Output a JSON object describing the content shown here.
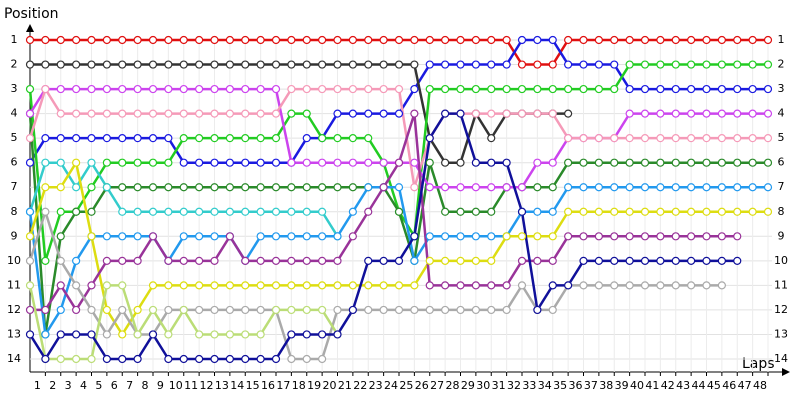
{
  "chart_data": {
    "type": "line",
    "x_label": "Laps",
    "y_label": "Position",
    "x": [
      0,
      1,
      2,
      3,
      4,
      5,
      6,
      7,
      8,
      9,
      10,
      11,
      12,
      13,
      14,
      15,
      16,
      17,
      18,
      19,
      20,
      21,
      22,
      23,
      24,
      25,
      26,
      27,
      28,
      29,
      30,
      31,
      32,
      33,
      34,
      35,
      36,
      37,
      38,
      39,
      40,
      41,
      42,
      43,
      44,
      45,
      46,
      47,
      48
    ],
    "xlim": [
      0,
      48
    ],
    "xticks": [
      1,
      2,
      3,
      4,
      5,
      6,
      7,
      8,
      9,
      10,
      11,
      12,
      13,
      14,
      15,
      16,
      17,
      18,
      19,
      20,
      21,
      22,
      23,
      24,
      25,
      26,
      27,
      28,
      29,
      30,
      31,
      32,
      33,
      34,
      35,
      36,
      37,
      38,
      39,
      40,
      41,
      42,
      43,
      44,
      45,
      46,
      47,
      48
    ],
    "ylim": [
      14,
      1
    ],
    "yticks": [
      1,
      2,
      3,
      4,
      5,
      6,
      7,
      8,
      9,
      10,
      11,
      12,
      13,
      14
    ],
    "grid": true,
    "series": [
      {
        "color": "#e01010",
        "values": [
          1,
          1,
          1,
          1,
          1,
          1,
          1,
          1,
          1,
          1,
          1,
          1,
          1,
          1,
          1,
          1,
          1,
          1,
          1,
          1,
          1,
          1,
          1,
          1,
          1,
          1,
          1,
          1,
          1,
          1,
          1,
          1,
          2,
          2,
          2,
          1,
          1,
          1,
          1,
          1,
          1,
          1,
          1,
          1,
          1,
          1,
          1,
          1,
          1
        ]
      },
      {
        "color": "#1a1ae0",
        "values": [
          6,
          5,
          5,
          5,
          5,
          5,
          5,
          5,
          5,
          5,
          6,
          6,
          6,
          6,
          6,
          6,
          6,
          6,
          5,
          5,
          4,
          4,
          4,
          4,
          4,
          3,
          2,
          2,
          2,
          2,
          2,
          2,
          1,
          1,
          1,
          2,
          2,
          2,
          2,
          3,
          3,
          3,
          3,
          3,
          3,
          3,
          3,
          3,
          3
        ]
      },
      {
        "color": "#333333",
        "values": [
          2,
          2,
          2,
          2,
          2,
          2,
          2,
          2,
          2,
          2,
          2,
          2,
          2,
          2,
          2,
          2,
          2,
          2,
          2,
          2,
          2,
          2,
          2,
          2,
          2,
          2,
          5,
          6,
          6,
          4,
          5,
          4,
          4,
          4,
          4,
          4,
          null,
          null,
          null,
          null,
          null,
          null,
          null,
          null,
          null,
          null,
          null,
          null,
          null
        ]
      },
      {
        "color": "#22cc22",
        "values": [
          3,
          10,
          8,
          8,
          7,
          6,
          6,
          6,
          6,
          6,
          5,
          5,
          5,
          5,
          5,
          5,
          5,
          4,
          4,
          5,
          5,
          5,
          5,
          6,
          8,
          9,
          3,
          3,
          3,
          3,
          3,
          3,
          3,
          3,
          3,
          3,
          3,
          3,
          3,
          2,
          2,
          2,
          2,
          2,
          2,
          2,
          2,
          2,
          2
        ]
      },
      {
        "color": "#2a8a2a",
        "values": [
          4,
          13,
          9,
          8,
          8,
          7,
          7,
          7,
          7,
          7,
          7,
          7,
          7,
          7,
          7,
          7,
          7,
          7,
          7,
          7,
          7,
          7,
          7,
          7,
          8,
          10,
          6,
          8,
          8,
          8,
          8,
          7,
          7,
          7,
          7,
          6,
          6,
          6,
          6,
          6,
          6,
          6,
          6,
          6,
          6,
          6,
          6,
          6,
          6
        ]
      },
      {
        "color": "#cc44ee",
        "values": [
          4,
          3,
          3,
          3,
          3,
          3,
          3,
          3,
          3,
          3,
          3,
          3,
          3,
          3,
          3,
          3,
          3,
          6,
          6,
          6,
          6,
          6,
          6,
          6,
          6,
          6,
          7,
          7,
          7,
          7,
          7,
          7,
          7,
          6,
          6,
          5,
          5,
          5,
          5,
          4,
          4,
          4,
          4,
          4,
          4,
          4,
          4,
          4,
          4
        ]
      },
      {
        "color": "#f59ab8",
        "values": [
          5,
          3,
          4,
          4,
          4,
          4,
          4,
          4,
          4,
          4,
          4,
          4,
          4,
          4,
          4,
          4,
          4,
          3,
          3,
          3,
          3,
          3,
          3,
          3,
          3,
          7,
          5,
          4,
          4,
          4,
          4,
          4,
          4,
          4,
          4,
          5,
          5,
          5,
          5,
          5,
          5,
          5,
          5,
          5,
          5,
          5,
          5,
          5,
          5
        ]
      },
      {
        "color": "#33cccc",
        "values": [
          8,
          6,
          6,
          7,
          6,
          7,
          8,
          8,
          8,
          8,
          8,
          8,
          8,
          8,
          8,
          8,
          8,
          8,
          8,
          8,
          9,
          null,
          null,
          null,
          null,
          null,
          null,
          null,
          null,
          null,
          null,
          null,
          null,
          null,
          null,
          null,
          null,
          null,
          null,
          null,
          null,
          null,
          null,
          null,
          null,
          null,
          null,
          null,
          null
        ]
      },
      {
        "color": "#2299ee",
        "values": [
          8,
          13,
          12,
          10,
          9,
          9,
          9,
          9,
          9,
          10,
          9,
          9,
          9,
          9,
          10,
          9,
          9,
          9,
          9,
          9,
          9,
          8,
          7,
          7,
          7,
          10,
          9,
          9,
          9,
          9,
          9,
          9,
          8,
          8,
          8,
          7,
          7,
          7,
          7,
          7,
          7,
          7,
          7,
          7,
          7,
          7,
          7,
          7,
          7
        ]
      },
      {
        "color": "#dddd11",
        "values": [
          9,
          7,
          7,
          6,
          9,
          12,
          13,
          12,
          11,
          11,
          11,
          11,
          11,
          11,
          11,
          11,
          11,
          11,
          11,
          11,
          11,
          11,
          11,
          11,
          11,
          11,
          10,
          10,
          10,
          10,
          10,
          9,
          9,
          9,
          9,
          8,
          8,
          8,
          8,
          8,
          8,
          8,
          8,
          8,
          8,
          8,
          8,
          8,
          8
        ]
      },
      {
        "color": "#993399",
        "values": [
          12,
          12,
          11,
          12,
          11,
          10,
          10,
          10,
          9,
          10,
          10,
          10,
          10,
          9,
          10,
          10,
          10,
          10,
          10,
          10,
          10,
          9,
          8,
          7,
          6,
          4,
          11,
          11,
          11,
          11,
          11,
          11,
          10,
          10,
          10,
          9,
          9,
          9,
          9,
          9,
          9,
          9,
          9,
          9,
          9,
          9,
          9,
          null,
          null
        ]
      },
      {
        "color": "#aaaaaa",
        "values": [
          10,
          8,
          10,
          11,
          12,
          13,
          12,
          13,
          13,
          12,
          12,
          12,
          12,
          12,
          12,
          12,
          12,
          14,
          14,
          14,
          12,
          12,
          12,
          12,
          12,
          12,
          12,
          12,
          12,
          12,
          12,
          12,
          11,
          12,
          12,
          11,
          11,
          11,
          11,
          11,
          11,
          11,
          11,
          11,
          11,
          11,
          null,
          null,
          null
        ]
      },
      {
        "color": "#bbdd77",
        "values": [
          11,
          14,
          14,
          14,
          14,
          11,
          11,
          13,
          12,
          13,
          12,
          13,
          13,
          13,
          13,
          13,
          12,
          12,
          12,
          12,
          13,
          null,
          null,
          null,
          null,
          null,
          null,
          null,
          null,
          null,
          null,
          null,
          null,
          null,
          null,
          null,
          null,
          null,
          null,
          null,
          null,
          null,
          null,
          null,
          null,
          null,
          null,
          null,
          null
        ]
      },
      {
        "color": "#10109a",
        "values": [
          13,
          14,
          13,
          13,
          13,
          14,
          14,
          14,
          13,
          14,
          14,
          14,
          14,
          14,
          14,
          14,
          14,
          13,
          13,
          13,
          13,
          12,
          10,
          10,
          10,
          9,
          5,
          4,
          4,
          6,
          6,
          6,
          8,
          12,
          11,
          11,
          10,
          10,
          10,
          10,
          10,
          10,
          10,
          10,
          10,
          10,
          10,
          null,
          null
        ]
      }
    ]
  }
}
